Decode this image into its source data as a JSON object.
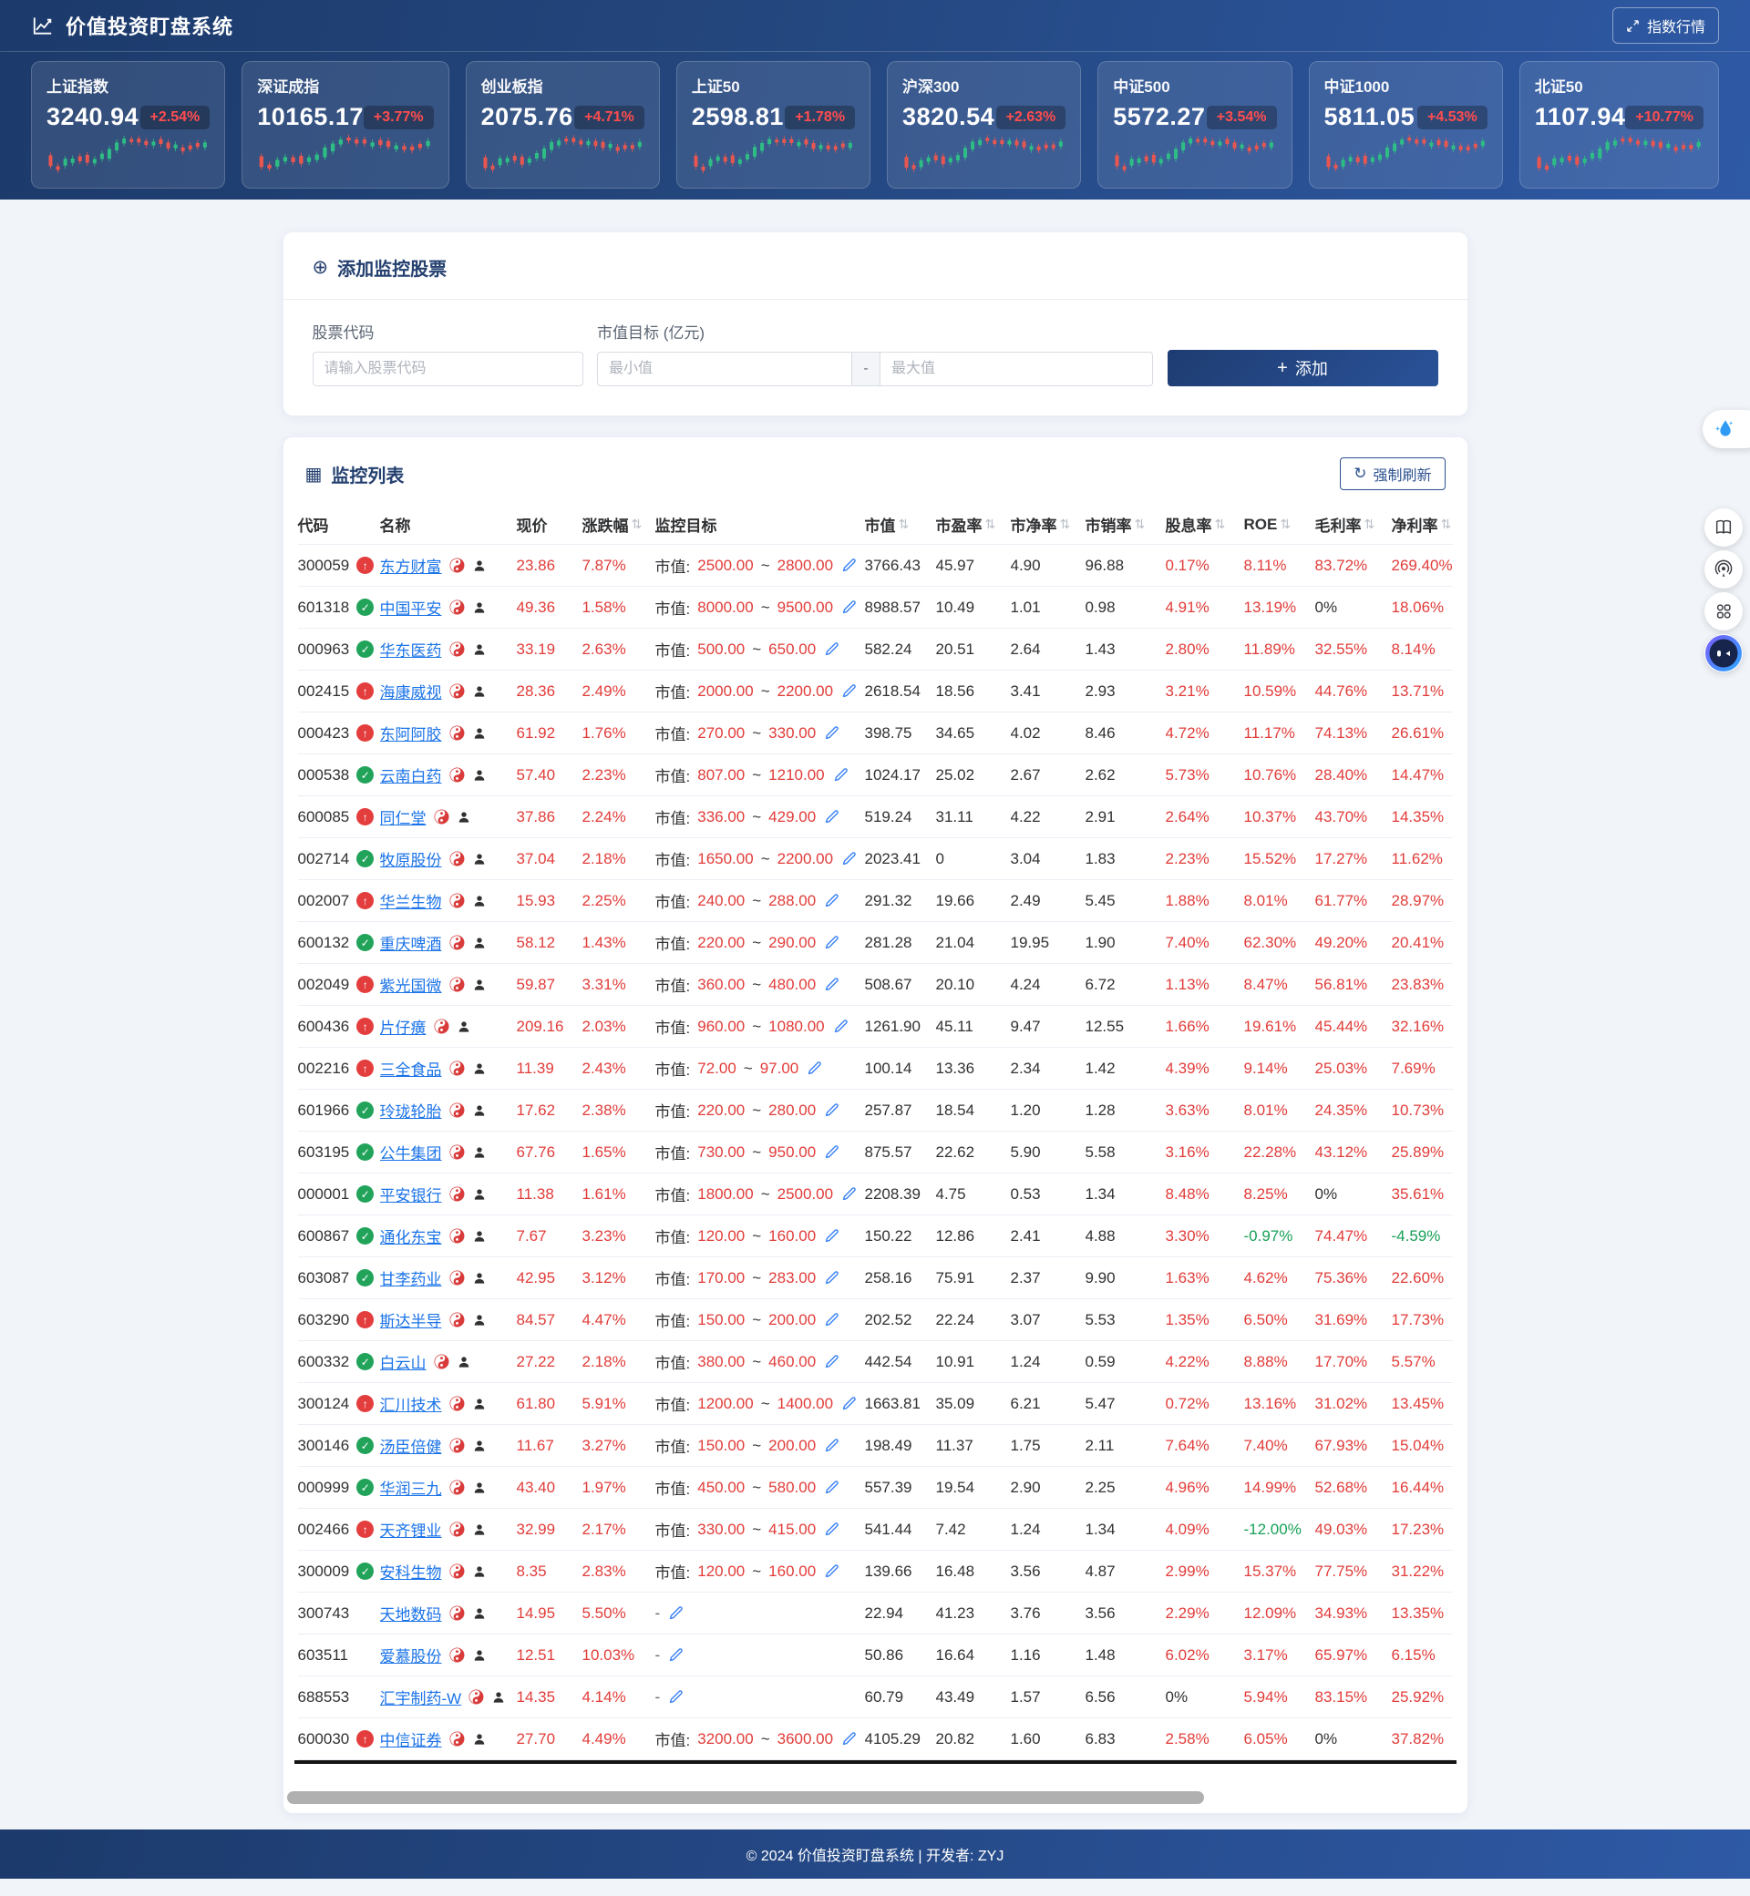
{
  "nav": {
    "title": "价值投资盯盘系统",
    "index_quotes_button": "指数行情"
  },
  "header": {
    "indices": [
      {
        "name": "上证指数",
        "value": "3240.94",
        "change": "+2.54%"
      },
      {
        "name": "深证成指",
        "value": "10165.17",
        "change": "+3.77%"
      },
      {
        "name": "创业板指",
        "value": "2075.76",
        "change": "+4.71%"
      },
      {
        "name": "上证50",
        "value": "2598.81",
        "change": "+1.78%"
      },
      {
        "name": "沪深300",
        "value": "3820.54",
        "change": "+2.63%"
      },
      {
        "name": "中证500",
        "value": "5572.27",
        "change": "+3.54%"
      },
      {
        "name": "中证1000",
        "value": "5811.05",
        "change": "+4.53%"
      },
      {
        "name": "北证50",
        "value": "1107.94",
        "change": "+10.77%"
      }
    ],
    "sparkline": {
      "up_color": "#e8564f",
      "down_color": "#2ebd85",
      "candles": [
        [
          62,
          22,
          "r"
        ],
        [
          74,
          8,
          "r"
        ],
        [
          64,
          14,
          "g"
        ],
        [
          58,
          9,
          "g"
        ],
        [
          56,
          10,
          "r"
        ],
        [
          58,
          16,
          "r"
        ],
        [
          60,
          9,
          "g"
        ],
        [
          52,
          11,
          "g"
        ],
        [
          44,
          20,
          "g"
        ],
        [
          31,
          16,
          "g"
        ],
        [
          22,
          10,
          "g"
        ],
        [
          18,
          6,
          "r"
        ],
        [
          20,
          8,
          "r"
        ],
        [
          22,
          8,
          "r"
        ],
        [
          25,
          8,
          "g"
        ],
        [
          23,
          10,
          "r"
        ],
        [
          28,
          12,
          "r"
        ],
        [
          32,
          8,
          "g"
        ],
        [
          35,
          8,
          "r"
        ],
        [
          33,
          8,
          "r"
        ],
        [
          30,
          8,
          "r"
        ],
        [
          27,
          10,
          "g"
        ]
      ]
    }
  },
  "add_form": {
    "title": "添加监控股票",
    "code_label": "股票代码",
    "code_placeholder": "请输入股票代码",
    "mcap_label": "市值目标 (亿元)",
    "min_placeholder": "最小值",
    "range_separator": "-",
    "max_placeholder": "最大值",
    "add_button": "添加"
  },
  "list": {
    "title": "监控列表",
    "refresh_button": "强制刷新",
    "target_prefix": "市值:",
    "target_tilde": "~",
    "empty_target": "-",
    "columns": [
      {
        "label": "代码",
        "sortable": false
      },
      {
        "label": "名称",
        "sortable": false
      },
      {
        "label": "现价",
        "sortable": false
      },
      {
        "label": "涨跌幅",
        "sortable": true
      },
      {
        "label": "监控目标",
        "sortable": false
      },
      {
        "label": "市值",
        "sortable": true
      },
      {
        "label": "市盈率",
        "sortable": true
      },
      {
        "label": "市净率",
        "sortable": true
      },
      {
        "label": "市销率",
        "sortable": true
      },
      {
        "label": "股息率",
        "sortable": true
      },
      {
        "label": "ROE",
        "sortable": true
      },
      {
        "label": "毛利率",
        "sortable": true
      },
      {
        "label": "净利率",
        "sortable": true
      }
    ],
    "rows": [
      {
        "code": "300059",
        "badge": "up",
        "name": "东方财富",
        "price": "23.86",
        "change": "7.87%",
        "target_min": "2500.00",
        "target_max": "2800.00",
        "mcap": "3766.43",
        "pe": "45.97",
        "pb": "4.90",
        "ps": "96.88",
        "dy": "0.17%",
        "roe": "8.11%",
        "gm": "83.72%",
        "nm": "269.40%"
      },
      {
        "code": "601318",
        "badge": "check",
        "name": "中国平安",
        "price": "49.36",
        "change": "1.58%",
        "target_min": "8000.00",
        "target_max": "9500.00",
        "mcap": "8988.57",
        "pe": "10.49",
        "pb": "1.01",
        "ps": "0.98",
        "dy": "4.91%",
        "roe": "13.19%",
        "gm": "0%",
        "nm": "18.06%"
      },
      {
        "code": "000963",
        "badge": "check",
        "name": "华东医药",
        "price": "33.19",
        "change": "2.63%",
        "target_min": "500.00",
        "target_max": "650.00",
        "mcap": "582.24",
        "pe": "20.51",
        "pb": "2.64",
        "ps": "1.43",
        "dy": "2.80%",
        "roe": "11.89%",
        "gm": "32.55%",
        "nm": "8.14%"
      },
      {
        "code": "002415",
        "badge": "up",
        "name": "海康威视",
        "price": "28.36",
        "change": "2.49%",
        "target_min": "2000.00",
        "target_max": "2200.00",
        "mcap": "2618.54",
        "pe": "18.56",
        "pb": "3.41",
        "ps": "2.93",
        "dy": "3.21%",
        "roe": "10.59%",
        "gm": "44.76%",
        "nm": "13.71%"
      },
      {
        "code": "000423",
        "badge": "up",
        "name": "东阿阿胶",
        "price": "61.92",
        "change": "1.76%",
        "target_min": "270.00",
        "target_max": "330.00",
        "mcap": "398.75",
        "pe": "34.65",
        "pb": "4.02",
        "ps": "8.46",
        "dy": "4.72%",
        "roe": "11.17%",
        "gm": "74.13%",
        "nm": "26.61%"
      },
      {
        "code": "000538",
        "badge": "check",
        "name": "云南白药",
        "price": "57.40",
        "change": "2.23%",
        "target_min": "807.00",
        "target_max": "1210.00",
        "mcap": "1024.17",
        "pe": "25.02",
        "pb": "2.67",
        "ps": "2.62",
        "dy": "5.73%",
        "roe": "10.76%",
        "gm": "28.40%",
        "nm": "14.47%"
      },
      {
        "code": "600085",
        "badge": "up",
        "name": "同仁堂",
        "price": "37.86",
        "change": "2.24%",
        "target_min": "336.00",
        "target_max": "429.00",
        "mcap": "519.24",
        "pe": "31.11",
        "pb": "4.22",
        "ps": "2.91",
        "dy": "2.64%",
        "roe": "10.37%",
        "gm": "43.70%",
        "nm": "14.35%"
      },
      {
        "code": "002714",
        "badge": "check",
        "name": "牧原股份",
        "price": "37.04",
        "change": "2.18%",
        "target_min": "1650.00",
        "target_max": "2200.00",
        "mcap": "2023.41",
        "pe": "0",
        "pb": "3.04",
        "ps": "1.83",
        "dy": "2.23%",
        "roe": "15.52%",
        "gm": "17.27%",
        "nm": "11.62%"
      },
      {
        "code": "002007",
        "badge": "up",
        "name": "华兰生物",
        "price": "15.93",
        "change": "2.25%",
        "target_min": "240.00",
        "target_max": "288.00",
        "mcap": "291.32",
        "pe": "19.66",
        "pb": "2.49",
        "ps": "5.45",
        "dy": "1.88%",
        "roe": "8.01%",
        "gm": "61.77%",
        "nm": "28.97%"
      },
      {
        "code": "600132",
        "badge": "check",
        "name": "重庆啤酒",
        "price": "58.12",
        "change": "1.43%",
        "target_min": "220.00",
        "target_max": "290.00",
        "mcap": "281.28",
        "pe": "21.04",
        "pb": "19.95",
        "ps": "1.90",
        "dy": "7.40%",
        "roe": "62.30%",
        "gm": "49.20%",
        "nm": "20.41%"
      },
      {
        "code": "002049",
        "badge": "up",
        "name": "紫光国微",
        "price": "59.87",
        "change": "3.31%",
        "target_min": "360.00",
        "target_max": "480.00",
        "mcap": "508.67",
        "pe": "20.10",
        "pb": "4.24",
        "ps": "6.72",
        "dy": "1.13%",
        "roe": "8.47%",
        "gm": "56.81%",
        "nm": "23.83%"
      },
      {
        "code": "600436",
        "badge": "up",
        "name": "片仔癀",
        "price": "209.16",
        "change": "2.03%",
        "target_min": "960.00",
        "target_max": "1080.00",
        "mcap": "1261.90",
        "pe": "45.11",
        "pb": "9.47",
        "ps": "12.55",
        "dy": "1.66%",
        "roe": "19.61%",
        "gm": "45.44%",
        "nm": "32.16%"
      },
      {
        "code": "002216",
        "badge": "up",
        "name": "三全食品",
        "price": "11.39",
        "change": "2.43%",
        "target_min": "72.00",
        "target_max": "97.00",
        "mcap": "100.14",
        "pe": "13.36",
        "pb": "2.34",
        "ps": "1.42",
        "dy": "4.39%",
        "roe": "9.14%",
        "gm": "25.03%",
        "nm": "7.69%"
      },
      {
        "code": "601966",
        "badge": "check",
        "name": "玲珑轮胎",
        "price": "17.62",
        "change": "2.38%",
        "target_min": "220.00",
        "target_max": "280.00",
        "mcap": "257.87",
        "pe": "18.54",
        "pb": "1.20",
        "ps": "1.28",
        "dy": "3.63%",
        "roe": "8.01%",
        "gm": "24.35%",
        "nm": "10.73%"
      },
      {
        "code": "603195",
        "badge": "check",
        "name": "公牛集团",
        "price": "67.76",
        "change": "1.65%",
        "target_min": "730.00",
        "target_max": "950.00",
        "mcap": "875.57",
        "pe": "22.62",
        "pb": "5.90",
        "ps": "5.58",
        "dy": "3.16%",
        "roe": "22.28%",
        "gm": "43.12%",
        "nm": "25.89%"
      },
      {
        "code": "000001",
        "badge": "check",
        "name": "平安银行",
        "price": "11.38",
        "change": "1.61%",
        "target_min": "1800.00",
        "target_max": "2500.00",
        "mcap": "2208.39",
        "pe": "4.75",
        "pb": "0.53",
        "ps": "1.34",
        "dy": "8.48%",
        "roe": "8.25%",
        "gm": "0%",
        "nm": "35.61%"
      },
      {
        "code": "600867",
        "badge": "check",
        "name": "通化东宝",
        "price": "7.67",
        "change": "3.23%",
        "target_min": "120.00",
        "target_max": "160.00",
        "mcap": "150.22",
        "pe": "12.86",
        "pb": "2.41",
        "ps": "4.88",
        "dy": "3.30%",
        "roe": "-0.97%",
        "gm": "74.47%",
        "nm": "-4.59%"
      },
      {
        "code": "603087",
        "badge": "check",
        "name": "甘李药业",
        "price": "42.95",
        "change": "3.12%",
        "target_min": "170.00",
        "target_max": "283.00",
        "mcap": "258.16",
        "pe": "75.91",
        "pb": "2.37",
        "ps": "9.90",
        "dy": "1.63%",
        "roe": "4.62%",
        "gm": "75.36%",
        "nm": "22.60%"
      },
      {
        "code": "603290",
        "badge": "up",
        "name": "斯达半导",
        "price": "84.57",
        "change": "4.47%",
        "target_min": "150.00",
        "target_max": "200.00",
        "mcap": "202.52",
        "pe": "22.24",
        "pb": "3.07",
        "ps": "5.53",
        "dy": "1.35%",
        "roe": "6.50%",
        "gm": "31.69%",
        "nm": "17.73%"
      },
      {
        "code": "600332",
        "badge": "check",
        "name": "白云山",
        "price": "27.22",
        "change": "2.18%",
        "target_min": "380.00",
        "target_max": "460.00",
        "mcap": "442.54",
        "pe": "10.91",
        "pb": "1.24",
        "ps": "0.59",
        "dy": "4.22%",
        "roe": "8.88%",
        "gm": "17.70%",
        "nm": "5.57%"
      },
      {
        "code": "300124",
        "badge": "up",
        "name": "汇川技术",
        "price": "61.80",
        "change": "5.91%",
        "target_min": "1200.00",
        "target_max": "1400.00",
        "mcap": "1663.81",
        "pe": "35.09",
        "pb": "6.21",
        "ps": "5.47",
        "dy": "0.72%",
        "roe": "13.16%",
        "gm": "31.02%",
        "nm": "13.45%"
      },
      {
        "code": "300146",
        "badge": "check",
        "name": "汤臣倍健",
        "price": "11.67",
        "change": "3.27%",
        "target_min": "150.00",
        "target_max": "200.00",
        "mcap": "198.49",
        "pe": "11.37",
        "pb": "1.75",
        "ps": "2.11",
        "dy": "7.64%",
        "roe": "7.40%",
        "gm": "67.93%",
        "nm": "15.04%"
      },
      {
        "code": "000999",
        "badge": "check",
        "name": "华润三九",
        "price": "43.40",
        "change": "1.97%",
        "target_min": "450.00",
        "target_max": "580.00",
        "mcap": "557.39",
        "pe": "19.54",
        "pb": "2.90",
        "ps": "2.25",
        "dy": "4.96%",
        "roe": "14.99%",
        "gm": "52.68%",
        "nm": "16.44%"
      },
      {
        "code": "002466",
        "badge": "up",
        "name": "天齐锂业",
        "price": "32.99",
        "change": "2.17%",
        "target_min": "330.00",
        "target_max": "415.00",
        "mcap": "541.44",
        "pe": "7.42",
        "pb": "1.24",
        "ps": "1.34",
        "dy": "4.09%",
        "roe": "-12.00%",
        "gm": "49.03%",
        "nm": "17.23%"
      },
      {
        "code": "300009",
        "badge": "check",
        "name": "安科生物",
        "price": "8.35",
        "change": "2.83%",
        "target_min": "120.00",
        "target_max": "160.00",
        "mcap": "139.66",
        "pe": "16.48",
        "pb": "3.56",
        "ps": "4.87",
        "dy": "2.99%",
        "roe": "15.37%",
        "gm": "77.75%",
        "nm": "31.22%"
      },
      {
        "code": "300743",
        "badge": "none",
        "name": "天地数码",
        "price": "14.95",
        "change": "5.50%",
        "target_min": null,
        "target_max": null,
        "mcap": "22.94",
        "pe": "41.23",
        "pb": "3.76",
        "ps": "3.56",
        "dy": "2.29%",
        "roe": "12.09%",
        "gm": "34.93%",
        "nm": "13.35%"
      },
      {
        "code": "603511",
        "badge": "none",
        "name": "爱慕股份",
        "price": "12.51",
        "change": "10.03%",
        "target_min": null,
        "target_max": null,
        "mcap": "50.86",
        "pe": "16.64",
        "pb": "1.16",
        "ps": "1.48",
        "dy": "6.02%",
        "roe": "3.17%",
        "gm": "65.97%",
        "nm": "6.15%"
      },
      {
        "code": "688553",
        "badge": "none",
        "name": "汇宇制药-W",
        "price": "14.35",
        "change": "4.14%",
        "target_min": null,
        "target_max": null,
        "mcap": "60.79",
        "pe": "43.49",
        "pb": "1.57",
        "ps": "6.56",
        "dy": "0%",
        "roe": "5.94%",
        "gm": "83.15%",
        "nm": "25.92%"
      },
      {
        "code": "600030",
        "badge": "up",
        "name": "中信证券",
        "price": "27.70",
        "change": "4.49%",
        "target_min": "3200.00",
        "target_max": "3600.00",
        "mcap": "4105.29",
        "pe": "20.82",
        "pb": "1.60",
        "ps": "6.83",
        "dy": "2.58%",
        "roe": "6.05%",
        "gm": "0%",
        "nm": "37.82%"
      }
    ]
  },
  "icons": {
    "logo": "line-chart",
    "expand": "expand-arrows",
    "add_section": "⊕",
    "plus": "+",
    "list_section": "▦",
    "refresh": "↻",
    "sort": "⇅",
    "up_badge": "↑",
    "check_badge": "✓",
    "edit": "pencil",
    "kline": "taiji",
    "holder": "person",
    "floating": [
      "ai-drop",
      "book",
      "podcast",
      "apps",
      "robot"
    ]
  },
  "colors": {
    "accent_red": "#e13c39",
    "accent_green": "#18a058",
    "link_blue": "#1a73e8",
    "navy_title": "#24406f",
    "badge_change": "#ff4d4f",
    "gradient_start": "#1c3a6b",
    "gradient_end": "#2e59a5"
  },
  "footer": {
    "text": "© 2024 价值投资盯盘系统 | 开发者: ZYJ"
  }
}
